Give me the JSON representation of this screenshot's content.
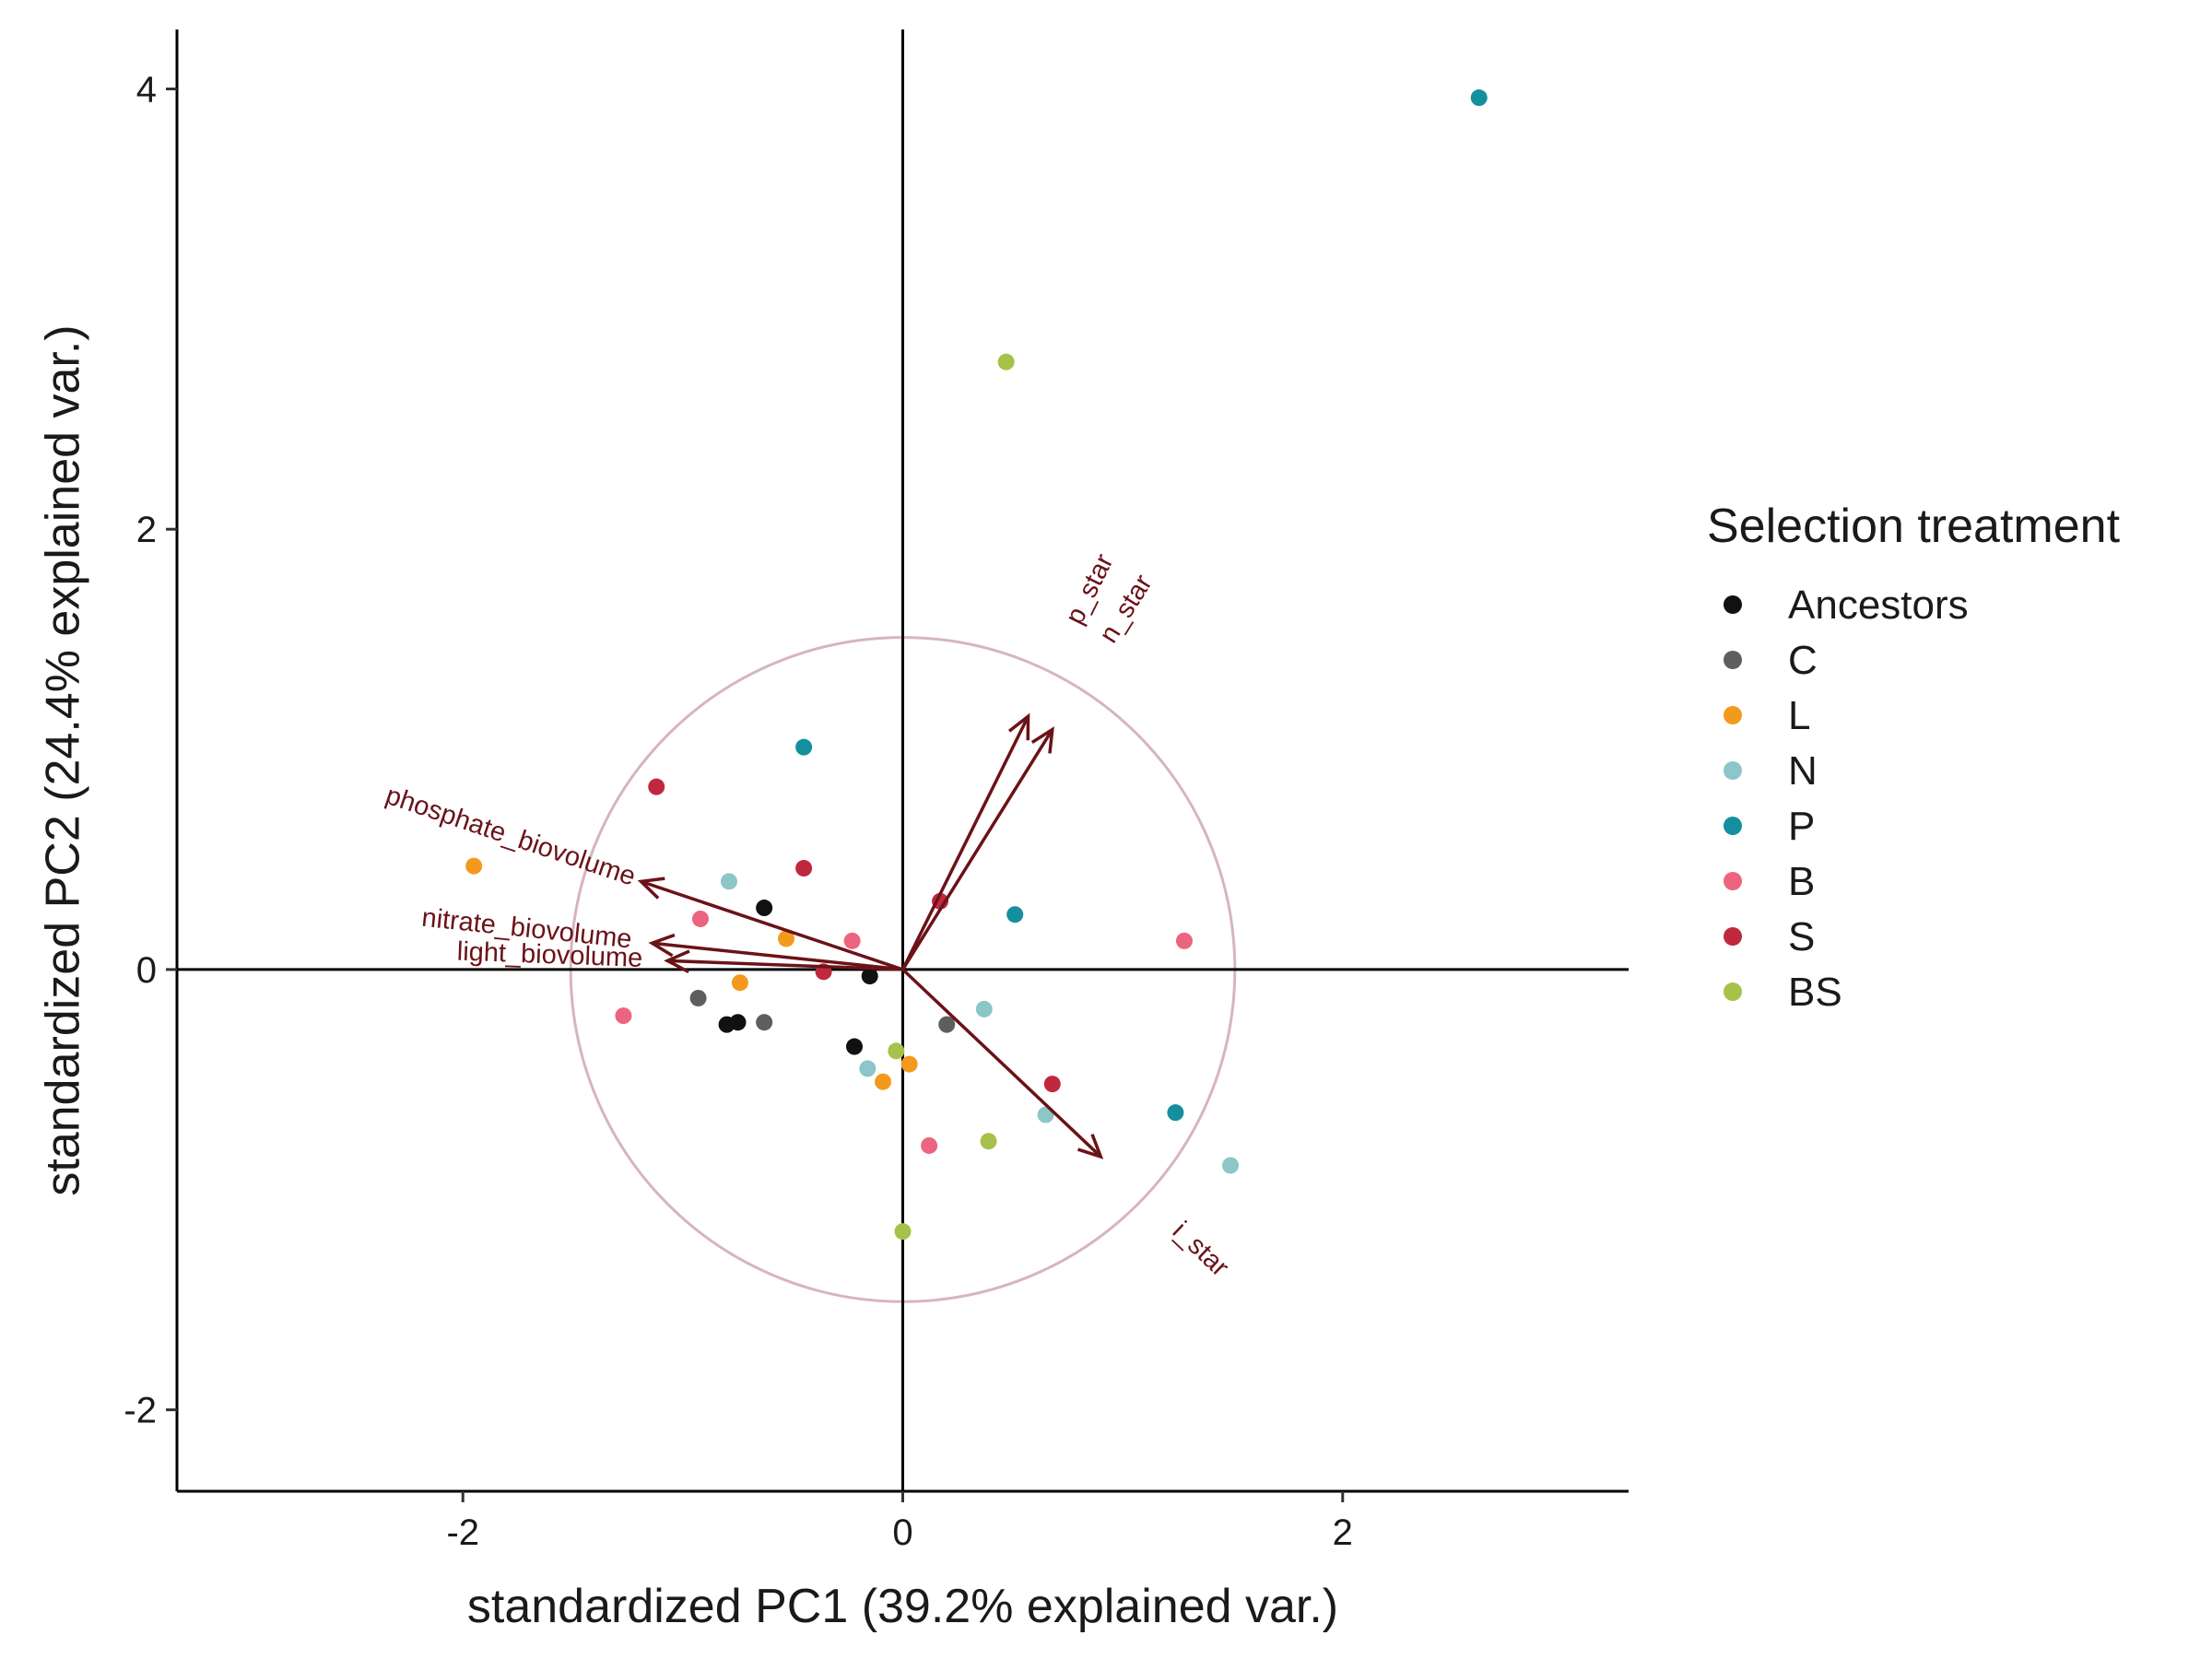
{
  "chart_data": {
    "type": "scatter",
    "title": "",
    "xlabel": "standardized PC1 (39.2% explained var.)",
    "ylabel": "standardized PC2 (24.4% explained var.)",
    "xlim": [
      -3.3,
      3.3
    ],
    "ylim": [
      -2.37,
      4.27
    ],
    "xticks": [
      -2,
      0,
      2
    ],
    "yticks": [
      -2,
      0,
      2,
      4
    ],
    "xtick_labels": [
      "-2",
      "0",
      "2"
    ],
    "ytick_labels": [
      "-2",
      "0",
      "2",
      "4"
    ],
    "grid": false,
    "reference_lines": {
      "x": 0,
      "y": 0
    },
    "correlation_circle_radius": 1.51,
    "legend": {
      "title": "Selection treatment",
      "placement": "right"
    },
    "loading_color": "#6b1218",
    "circle_color": "#d7b4c1",
    "series": [
      {
        "name": "Ancestors",
        "color": "#111111",
        "points": [
          [
            -0.63,
            0.28
          ],
          [
            -0.15,
            -0.03
          ],
          [
            -0.8,
            -0.25
          ],
          [
            -0.75,
            -0.24
          ],
          [
            -0.22,
            -0.35
          ]
        ]
      },
      {
        "name": "C",
        "color": "#5e5e5e",
        "points": [
          [
            -0.93,
            -0.13
          ],
          [
            -0.63,
            -0.24
          ],
          [
            0.2,
            -0.25
          ]
        ]
      },
      {
        "name": "L",
        "color": "#f39a1e",
        "points": [
          [
            -1.95,
            0.47
          ],
          [
            -0.53,
            0.14
          ],
          [
            -0.74,
            -0.06
          ],
          [
            0.03,
            -0.43
          ],
          [
            -0.09,
            -0.51
          ]
        ]
      },
      {
        "name": "N",
        "color": "#8cc6c8",
        "points": [
          [
            -0.79,
            0.4
          ],
          [
            -0.16,
            -0.45
          ],
          [
            0.37,
            -0.18
          ],
          [
            0.65,
            -0.66
          ],
          [
            1.49,
            -0.89
          ]
        ]
      },
      {
        "name": "P",
        "color": "#148f9e",
        "points": [
          [
            -0.45,
            1.01
          ],
          [
            0.51,
            0.25
          ],
          [
            1.24,
            -0.65
          ],
          [
            2.62,
            3.96
          ]
        ]
      },
      {
        "name": "B",
        "color": "#ed6480",
        "points": [
          [
            -0.92,
            0.23
          ],
          [
            -0.23,
            0.13
          ],
          [
            -1.27,
            -0.21
          ],
          [
            0.12,
            -0.8
          ],
          [
            1.28,
            0.13
          ]
        ]
      },
      {
        "name": "S",
        "color": "#c0283e",
        "points": [
          [
            -1.12,
            0.83
          ],
          [
            -0.45,
            0.46
          ],
          [
            -0.36,
            -0.01
          ],
          [
            0.17,
            0.31
          ],
          [
            0.68,
            -0.52
          ]
        ]
      },
      {
        "name": "BS",
        "color": "#a7c14a",
        "points": [
          [
            0.47,
            2.76
          ],
          [
            -0.03,
            -0.37
          ],
          [
            0.39,
            -0.78
          ],
          [
            0.0,
            -1.19
          ]
        ]
      }
    ],
    "loadings": [
      {
        "label": "phosphate_biovolume",
        "x": -1.19,
        "y": 0.4
      },
      {
        "label": "nitrate_biovolume",
        "x": -1.14,
        "y": 0.12
      },
      {
        "label": "light_biovolume",
        "x": -1.07,
        "y": 0.04
      },
      {
        "label": "p_star",
        "x": 0.57,
        "y": 1.15
      },
      {
        "label": "n_star",
        "x": 0.68,
        "y": 1.09
      },
      {
        "label": "i_star",
        "x": 0.9,
        "y": -0.85
      }
    ]
  }
}
